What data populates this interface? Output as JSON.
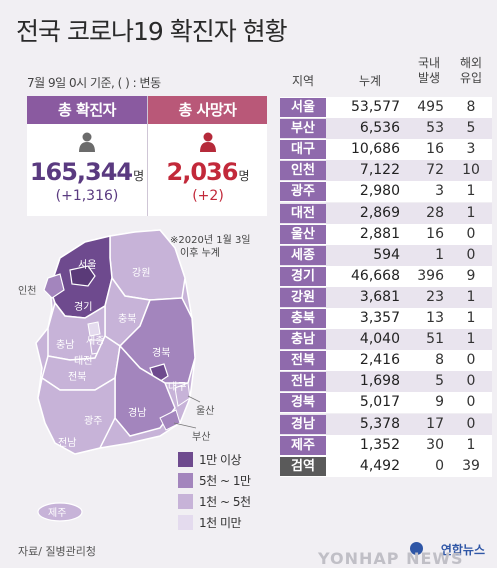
{
  "title": "전국 코로나19 확진자 현황",
  "date_note": "7월 9일 0시 기준, ( ) : 변동",
  "summary": {
    "confirmed": {
      "label": "총 확진자",
      "value": "165,344",
      "unit": "명",
      "change": "(+1,316)"
    },
    "deaths": {
      "label": "총 사망자",
      "value": "2,036",
      "unit": "명",
      "change": "(+2)"
    }
  },
  "map": {
    "note_line1": "※2020년 1월 3일",
    "note_line2": "이후 누계",
    "regions": {
      "seoul": "서울",
      "incheon": "인천",
      "gyeonggi": "경기",
      "gangwon": "강원",
      "chungbuk": "충북",
      "sejong": "세종",
      "chungnam": "충남",
      "daejeon": "대전",
      "gyeongbuk": "경북",
      "daegu": "대구",
      "jeonbuk": "전북",
      "ulsan": "울산",
      "gyeongnam": "경남",
      "gwangju": "광주",
      "busan": "부산",
      "jeonnam": "전남",
      "jeju": "제주"
    },
    "legend": [
      {
        "label": "1만 이상",
        "color": "#6e4a8e"
      },
      {
        "label": "5천 ~ 1만",
        "color": "#a385bd"
      },
      {
        "label": "1천 ~ 5천",
        "color": "#c7b3d8"
      },
      {
        "label": "1천 미만",
        "color": "#e4dbee"
      }
    ]
  },
  "source": "자료/ 질병관리청",
  "watermark": {
    "brand": "연합뉴스",
    "text": "YONHAP NEWS"
  },
  "chart_data": {
    "type": "table",
    "columns": [
      "지역",
      "누계",
      "국내 발생",
      "해외 유입"
    ],
    "column_lines": {
      "region": [
        "지역"
      ],
      "total": [
        "누계"
      ],
      "local": [
        "국내",
        "발생"
      ],
      "overseas": [
        "해외",
        "유입"
      ]
    },
    "rows": [
      {
        "region": "서울",
        "total": "53,577",
        "local": "495",
        "overseas": "8"
      },
      {
        "region": "부산",
        "total": "6,536",
        "local": "53",
        "overseas": "5"
      },
      {
        "region": "대구",
        "total": "10,686",
        "local": "16",
        "overseas": "3"
      },
      {
        "region": "인천",
        "total": "7,122",
        "local": "72",
        "overseas": "10"
      },
      {
        "region": "광주",
        "total": "2,980",
        "local": "3",
        "overseas": "1"
      },
      {
        "region": "대전",
        "total": "2,869",
        "local": "28",
        "overseas": "1"
      },
      {
        "region": "울산",
        "total": "2,881",
        "local": "16",
        "overseas": "0"
      },
      {
        "region": "세종",
        "total": "594",
        "local": "1",
        "overseas": "0"
      },
      {
        "region": "경기",
        "total": "46,668",
        "local": "396",
        "overseas": "9"
      },
      {
        "region": "강원",
        "total": "3,681",
        "local": "23",
        "overseas": "1"
      },
      {
        "region": "충북",
        "total": "3,357",
        "local": "13",
        "overseas": "1"
      },
      {
        "region": "충남",
        "total": "4,040",
        "local": "51",
        "overseas": "1"
      },
      {
        "region": "전북",
        "total": "2,416",
        "local": "8",
        "overseas": "0"
      },
      {
        "region": "전남",
        "total": "1,698",
        "local": "5",
        "overseas": "0"
      },
      {
        "region": "경북",
        "total": "5,017",
        "local": "9",
        "overseas": "0"
      },
      {
        "region": "경남",
        "total": "5,378",
        "local": "17",
        "overseas": "0"
      },
      {
        "region": "제주",
        "total": "1,352",
        "local": "30",
        "overseas": "1"
      },
      {
        "region": "검역",
        "total": "4,492",
        "local": "0",
        "overseas": "39"
      }
    ]
  }
}
